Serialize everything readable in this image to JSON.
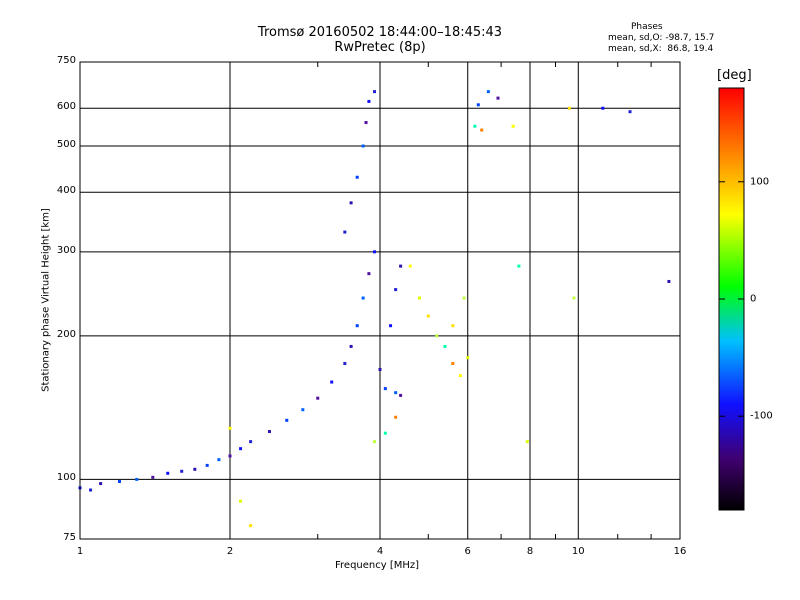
{
  "title_line1": "Tromsø 20160502 18:44:00–18:45:43",
  "title_line2": "RwPretec (8p)",
  "phase_box": {
    "title": "Phases",
    "o_line": "mean, sd,O: -98.7, 15.7",
    "x_line": "mean, sd,X:  86.8, 19.4"
  },
  "chart_data": {
    "type": "scatter",
    "xlabel": "Frequency [MHz]",
    "ylabel": "Stationary phase Virtual Height [km]",
    "xscale": "log",
    "yscale": "log",
    "xlim": [
      1,
      16
    ],
    "ylim": [
      75,
      750
    ],
    "xticks": [
      1,
      2,
      4,
      6,
      8,
      10,
      16
    ],
    "xtick_labels": [
      "1",
      "2",
      "4",
      "6",
      "8",
      "10",
      "16"
    ],
    "yticks": [
      75,
      100,
      200,
      300,
      400,
      500,
      600,
      750
    ],
    "ytick_labels": [
      "75",
      "100",
      "200",
      "300",
      "400",
      "500",
      "600",
      "750"
    ],
    "grid": true,
    "colorbar": {
      "label": "[deg]",
      "range": [
        -180,
        180
      ],
      "ticks": [
        100,
        0,
        -100
      ],
      "tick_labels": [
        "100",
        "0",
        "-100"
      ],
      "colors": [
        "#000000",
        "#6000a0",
        "#0000ff",
        "#00d0ff",
        "#00ff00",
        "#ffff00",
        "#ff8000",
        "#ff0000"
      ]
    },
    "series": [
      {
        "color_key": "O-mode (blue/purple, phase ≈ -100°)",
        "points": [
          [
            1.0,
            96
          ],
          [
            1.05,
            95
          ],
          [
            1.1,
            98
          ],
          [
            1.2,
            99
          ],
          [
            1.3,
            100
          ],
          [
            1.4,
            101
          ],
          [
            1.5,
            103
          ],
          [
            1.6,
            104
          ],
          [
            1.7,
            105
          ],
          [
            1.8,
            107
          ],
          [
            1.9,
            110
          ],
          [
            2.0,
            112
          ],
          [
            2.1,
            116
          ],
          [
            2.2,
            120
          ],
          [
            2.4,
            126
          ],
          [
            2.6,
            133
          ],
          [
            2.8,
            140
          ],
          [
            3.0,
            148
          ],
          [
            3.2,
            160
          ],
          [
            3.4,
            175
          ],
          [
            3.5,
            190
          ],
          [
            3.6,
            210
          ],
          [
            3.7,
            240
          ],
          [
            3.8,
            270
          ],
          [
            3.9,
            300
          ],
          [
            3.4,
            330
          ],
          [
            3.5,
            380
          ],
          [
            3.6,
            430
          ],
          [
            3.7,
            500
          ],
          [
            3.75,
            560
          ],
          [
            3.8,
            620
          ],
          [
            3.9,
            650
          ],
          [
            4.0,
            170
          ],
          [
            4.1,
            155
          ],
          [
            4.3,
            152
          ],
          [
            4.4,
            150
          ],
          [
            4.2,
            210
          ],
          [
            4.3,
            250
          ],
          [
            4.4,
            280
          ],
          [
            6.3,
            610
          ],
          [
            6.6,
            650
          ],
          [
            6.9,
            630
          ],
          [
            11.2,
            600
          ],
          [
            12.7,
            590
          ],
          [
            15.2,
            260
          ]
        ]
      },
      {
        "color_key": "X-mode (yellow/green, phase ≈ +90°)",
        "points": [
          [
            2.0,
            128
          ],
          [
            2.1,
            90
          ],
          [
            2.2,
            80
          ],
          [
            3.9,
            120
          ],
          [
            4.1,
            125
          ],
          [
            4.3,
            135
          ],
          [
            4.6,
            280
          ],
          [
            4.8,
            240
          ],
          [
            5.0,
            220
          ],
          [
            5.2,
            200
          ],
          [
            5.4,
            190
          ],
          [
            5.6,
            175
          ],
          [
            5.8,
            165
          ],
          [
            6.0,
            180
          ],
          [
            5.6,
            210
          ],
          [
            5.9,
            240
          ],
          [
            6.2,
            550
          ],
          [
            6.4,
            540
          ],
          [
            7.4,
            550
          ],
          [
            7.9,
            120
          ],
          [
            9.6,
            600
          ],
          [
            9.8,
            240
          ],
          [
            7.6,
            280
          ]
        ]
      }
    ]
  }
}
